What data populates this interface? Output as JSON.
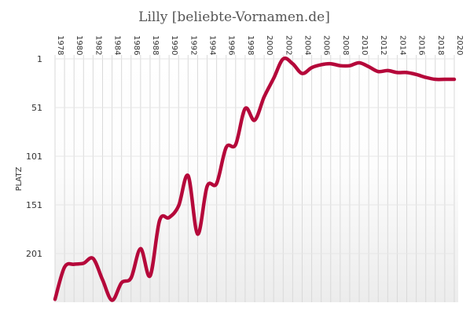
{
  "page_title": "Lilly  [beliebte-Vornamen.de]",
  "chart_data": {
    "type": "line",
    "title": "Lilly  [beliebte-Vornamen.de]",
    "xlabel": "",
    "ylabel": "PLATZ",
    "x_tick_labels": [
      "1978",
      "1980",
      "1982",
      "1984",
      "1986",
      "1988",
      "1990",
      "1992",
      "1994",
      "1996",
      "1998",
      "2000",
      "2002",
      "2004",
      "2006",
      "2008",
      "2010",
      "2012",
      "2014",
      "2016",
      "2018",
      "2020"
    ],
    "y_tick_labels": [
      "1",
      "51",
      "101",
      "151",
      "201"
    ],
    "y_ticks": [
      1,
      51,
      101,
      151,
      201
    ],
    "xlim": [
      1978,
      2020
    ],
    "ylim": [
      1,
      250
    ],
    "y_inverted": true,
    "grid": "vertical lines at each year",
    "line_color": "#b5083a",
    "series": [
      {
        "x": [
          1978,
          1979,
          1980,
          1981,
          1982,
          1983,
          1984,
          1985,
          1986,
          1987,
          1988,
          1989,
          1990,
          1991,
          1992,
          1993,
          1994,
          1995,
          1996,
          1997,
          1998,
          1999,
          2000,
          2001,
          2002,
          2003,
          2004,
          2005,
          2006,
          2007,
          2008,
          2009,
          2010,
          2011,
          2012,
          2013,
          2014,
          2015,
          2016,
          2017,
          2018,
          2019,
          2020
        ],
        "values": [
          248,
          215,
          212,
          211,
          206,
          228,
          249,
          231,
          226,
          196,
          224,
          167,
          164,
          152,
          121,
          181,
          132,
          129,
          92,
          89,
          52,
          64,
          40,
          21,
          1,
          6,
          16,
          10,
          7,
          6,
          8,
          8,
          5,
          9,
          14,
          13,
          15,
          15,
          17,
          20,
          22,
          22,
          22
        ]
      }
    ]
  }
}
